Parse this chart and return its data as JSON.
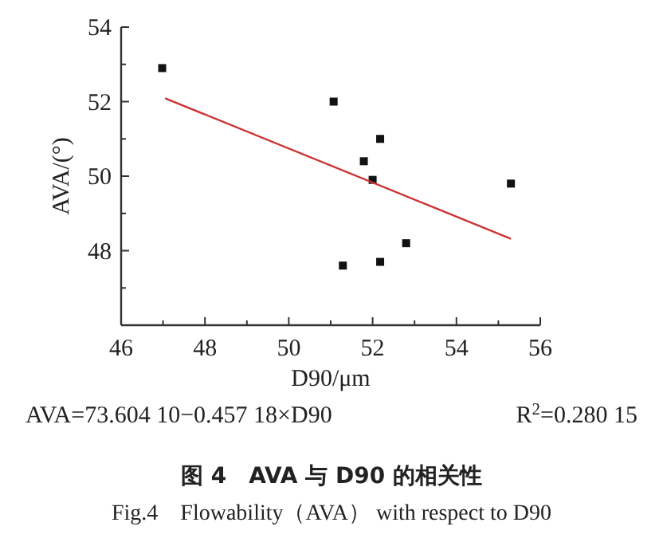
{
  "chart_data": {
    "type": "scatter",
    "title": "图 4　AVA 与 D90 的相关性",
    "subtitle": "Fig.4　Flowability（AVA） with respect to D90",
    "xlabel": "D90/μm",
    "ylabel": "AVA/(°)",
    "annotations": [
      "AVA=73.604 10−0.457 18×D90",
      "R$^{2}$=0.280 15"
    ],
    "series": [
      {
        "color": "#111111",
        "marker": "square",
        "x": [
          46.98,
          51.07,
          52.18,
          51.79,
          52.0,
          55.3,
          52.8,
          51.29,
          52.18
        ],
        "values": [
          52.9,
          52.0,
          51.0,
          50.4,
          49.9,
          49.8,
          48.2,
          47.6,
          47.7
        ]
      },
      {
        "type": "line",
        "marker": "none",
        "color": "#cc3333",
        "x": [
          47.05,
          55.3
        ],
        "values": [
          52.09,
          48.32
        ]
      }
    ],
    "grid": false,
    "xlim": [
      46,
      56
    ],
    "xticks": [
      46,
      {
        "value": 47,
        "label": null
      },
      48,
      {
        "value": 49,
        "label": null
      },
      50,
      {
        "value": 51,
        "label": null
      },
      52,
      {
        "value": 53,
        "label": null
      },
      54,
      {
        "value": 55,
        "label": null
      },
      56
    ],
    "ylim": [
      46,
      54
    ],
    "yticks": [
      {
        "value": 47,
        "label": null
      },
      48,
      {
        "value": 49,
        "label": null
      },
      50,
      {
        "value": 51,
        "label": null
      },
      52,
      {
        "value": 53,
        "label": null
      },
      54
    ]
  }
}
